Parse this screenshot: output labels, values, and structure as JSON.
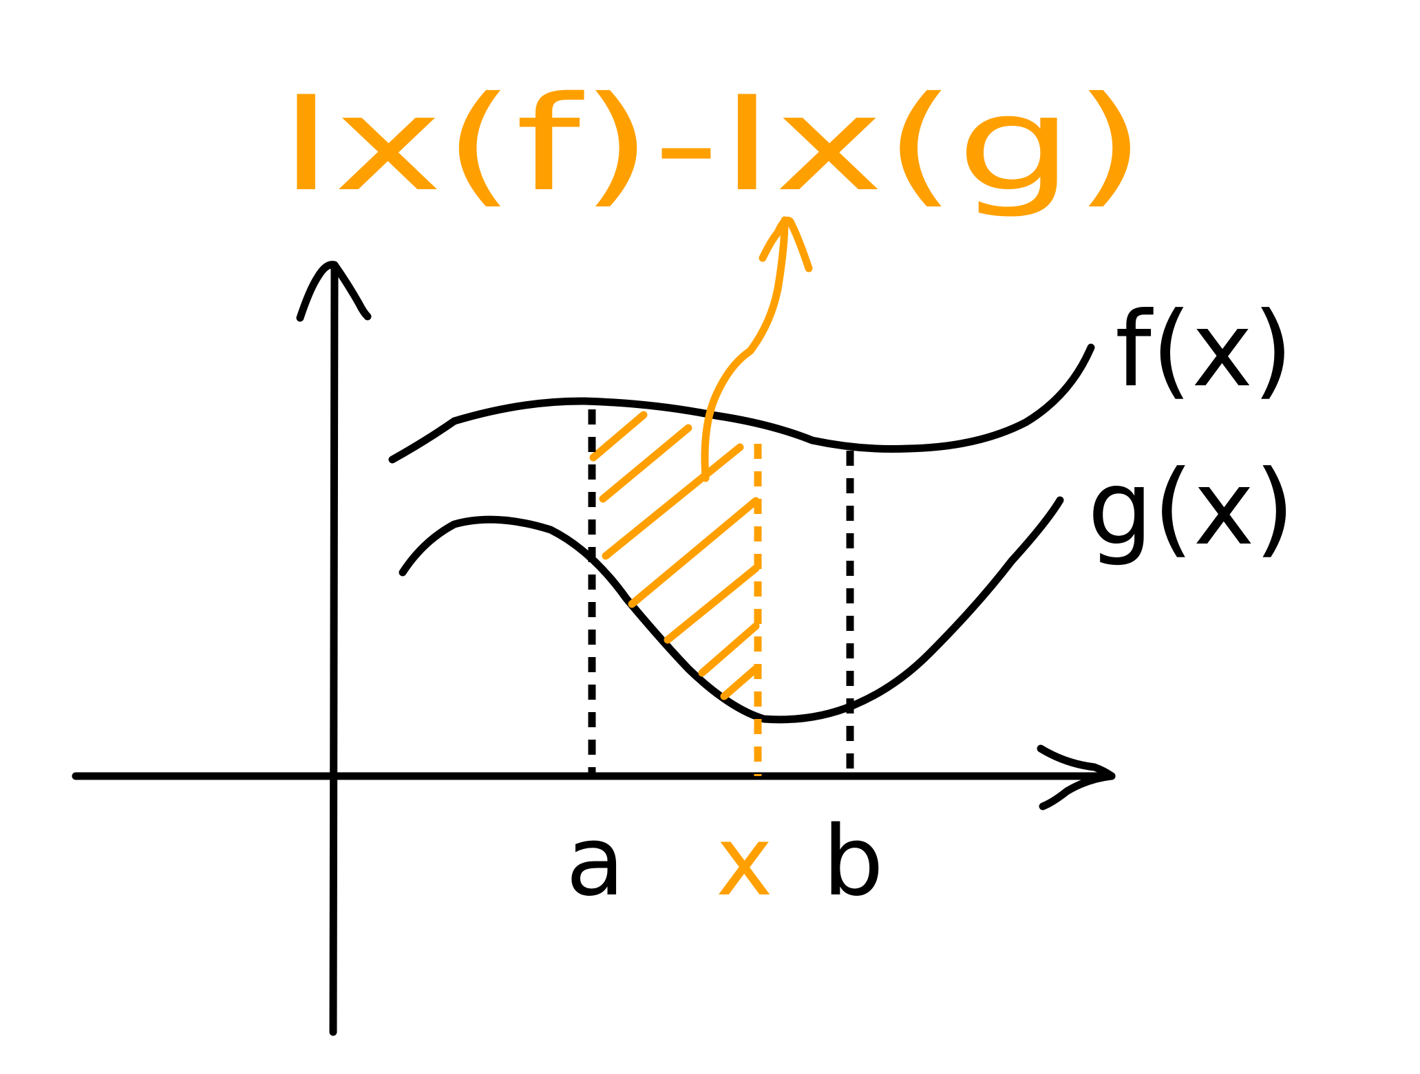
{
  "colors": {
    "ink": "#000000",
    "highlight": "#ffa000",
    "background": "#ffffff"
  },
  "formula": {
    "text": "Ix(f)-Ix(g)"
  },
  "curves": {
    "upper_label": "f(x)",
    "lower_label": "g(x)"
  },
  "axis": {
    "marks": [
      "a",
      "x",
      "b"
    ]
  }
}
